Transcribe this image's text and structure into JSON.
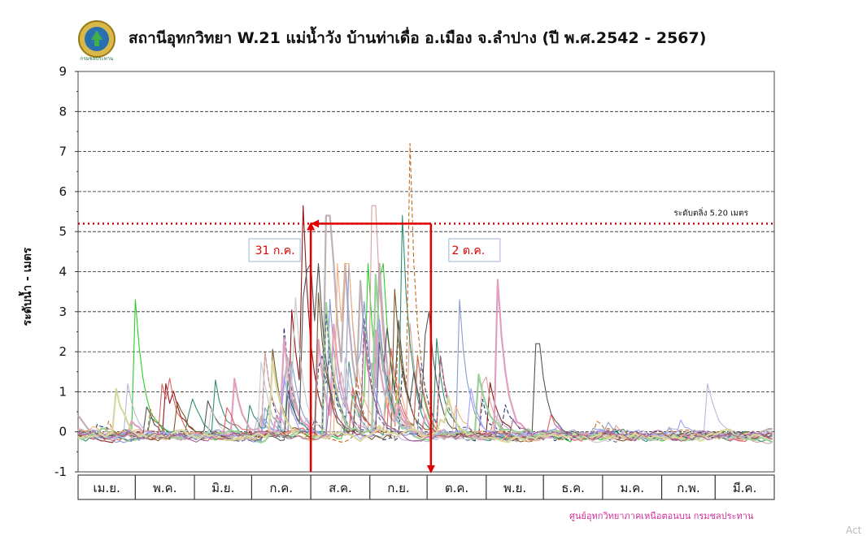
{
  "header": {
    "title": "สถานีอุทกวิทยา W.21 แม่น้ำวัง บ้านท่าเดื่อ  อ.เมือง จ.ลำปาง (ปี พ.ศ.2542 - 2567)",
    "logo_caption": "กรมชลประทาน"
  },
  "footer": {
    "credit": "ศูนย์อุทกวิทยาภาคเหนือตอนบน กรมชลประทาน",
    "corner_text": "Act"
  },
  "chart_data": {
    "type": "line",
    "title": "สถานีอุทกวิทยา W.21 แม่น้ำวัง บ้านท่าเดื่อ  อ.เมือง จ.ลำปาง (ปี พ.ศ.2542 - 2567)",
    "ylabel": "ระดับน้ำ - เมตร",
    "xlabel": "",
    "ylim": [
      -1,
      9
    ],
    "yticks": [
      "-1",
      "0",
      "1",
      "2",
      "3",
      "4",
      "5",
      "6",
      "7",
      "8",
      "9"
    ],
    "grid": "horizontal dashed",
    "months": [
      "เม.ย.",
      "พ.ค.",
      "มิ.ย.",
      "ก.ค.",
      "ส.ค.",
      "ก.ย.",
      "ต.ค.",
      "พ.ย.",
      "ธ.ค.",
      "ม.ค.",
      "ก.พ.",
      "มี.ค."
    ],
    "month_days": [
      30,
      31,
      30,
      31,
      31,
      30,
      31,
      30,
      31,
      31,
      28,
      31
    ],
    "critical_level": {
      "value": 5.2,
      "label": "ระดับตลิ่ง 5.20  เมตร",
      "color": "#cc0000"
    },
    "annotations": [
      {
        "label": "31 ก.ค.",
        "day": 122
      },
      {
        "label": "2 ต.ค.",
        "day": 185
      }
    ],
    "annotation_color": "#e00000",
    "series_colors": [
      "#2ecc2e",
      "#1f3a6e",
      "#8b1a1a",
      "#c0b0b8",
      "#d9a0a0",
      "#2f8f6f",
      "#c46a1a",
      "#8a9bd0",
      "#e0a0c0",
      "#555555",
      "#b8b8d8",
      "#e06060",
      "#7a5a2a",
      "#9bd09b",
      "#c9c9c9",
      "#f0b080",
      "#a0a0ff",
      "#606090",
      "#d8d8a0",
      "#b06090"
    ],
    "notable_peaks": [
      {
        "day": 30,
        "value": 3.3
      },
      {
        "day": 108,
        "value": 2.6
      },
      {
        "day": 118,
        "value": 5.65
      },
      {
        "day": 131,
        "value": 5.4
      },
      {
        "day": 155,
        "value": 5.65
      },
      {
        "day": 170,
        "value": 5.4
      },
      {
        "day": 174,
        "value": 7.2
      },
      {
        "day": 200,
        "value": 3.3
      },
      {
        "day": 220,
        "value": 3.8
      },
      {
        "day": 241,
        "value": 2.2
      },
      {
        "day": 330,
        "value": 1.2
      }
    ]
  }
}
